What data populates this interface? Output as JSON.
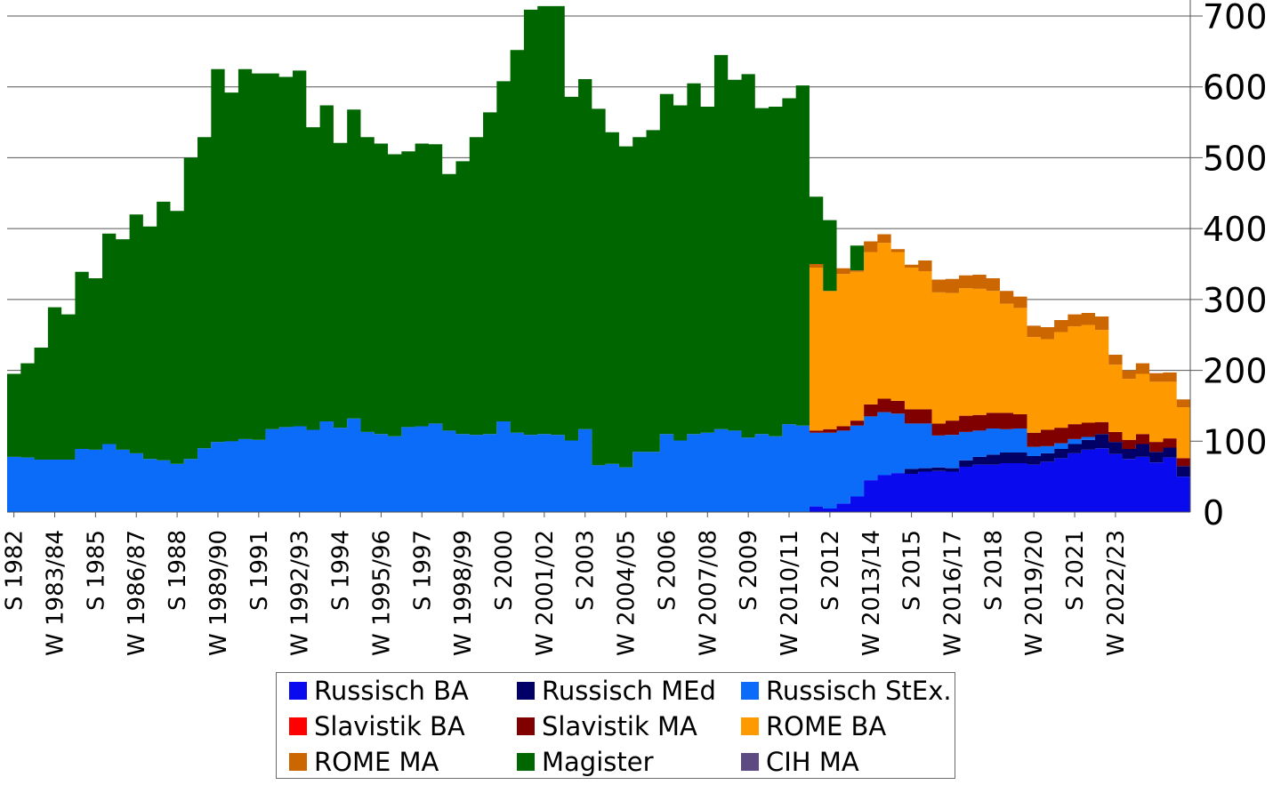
{
  "chart_data": {
    "type": "area",
    "stacked": true,
    "grid": true,
    "y_axis_side": "right",
    "ylim": [
      0,
      700
    ],
    "y_ticks": [
      "0",
      "100",
      "200",
      "300",
      "400",
      "500",
      "600",
      "700"
    ],
    "x_tick_labels": [
      "S 1982",
      "W 1983/84",
      "S 1985",
      "W 1986/87",
      "S 1988",
      "W 1989/90",
      "S 1991",
      "W 1992/93",
      "S 1994",
      "W 1995/96",
      "S 1997",
      "W 1998/99",
      "S 2000",
      "W 2001/02",
      "S 2003",
      "W 2004/05",
      "S 2006",
      "W 2007/08",
      "S 2009",
      "W 2010/11",
      "S 2012",
      "W 2013/14",
      "S 2015",
      "W 2016/17",
      "S 2018",
      "W 2019/20",
      "S 2021",
      "W 2022/23"
    ],
    "legend_position": "bottom",
    "series": [
      {
        "name": "Russisch BA",
        "color": "#0a0aee",
        "values": [
          0,
          0,
          0,
          0,
          0,
          0,
          0,
          0,
          0,
          0,
          0,
          0,
          0,
          0,
          0,
          0,
          0,
          0,
          0,
          0,
          0,
          0,
          0,
          0,
          0,
          0,
          0,
          0,
          0,
          0,
          0,
          0,
          0,
          0,
          0,
          0,
          0,
          0,
          0,
          0,
          0,
          0,
          0,
          0,
          0,
          0,
          0,
          0,
          0,
          0,
          0,
          0,
          0,
          0,
          0,
          0,
          0,
          0,
          0,
          8,
          5,
          12,
          22,
          45,
          52,
          55,
          54,
          57,
          58,
          57,
          64,
          67,
          67,
          69,
          69,
          67,
          71,
          76,
          83,
          88,
          90,
          82,
          75,
          78,
          70,
          77,
          50
        ]
      },
      {
        "name": "Russisch MEd",
        "color": "#000066",
        "values": [
          0,
          0,
          0,
          0,
          0,
          0,
          0,
          0,
          0,
          0,
          0,
          0,
          0,
          0,
          0,
          0,
          0,
          0,
          0,
          0,
          0,
          0,
          0,
          0,
          0,
          0,
          0,
          0,
          0,
          0,
          0,
          0,
          0,
          0,
          0,
          0,
          0,
          0,
          0,
          0,
          0,
          0,
          0,
          0,
          0,
          0,
          0,
          0,
          0,
          0,
          0,
          0,
          0,
          0,
          0,
          0,
          0,
          0,
          0,
          0,
          0,
          0,
          0,
          0,
          0,
          0,
          7,
          5,
          5,
          5,
          9,
          11,
          14,
          15,
          15,
          12,
          12,
          13,
          13,
          14,
          20,
          17,
          14,
          18,
          15,
          14,
          15
        ]
      },
      {
        "name": "Russisch StEx.",
        "color": "#0b6cfa",
        "values": [
          78,
          77,
          74,
          74,
          74,
          89,
          88,
          96,
          88,
          83,
          75,
          73,
          68,
          75,
          90,
          99,
          100,
          103,
          102,
          117,
          120,
          121,
          116,
          128,
          119,
          132,
          113,
          110,
          107,
          120,
          121,
          125,
          115,
          110,
          109,
          110,
          128,
          112,
          109,
          110,
          109,
          101,
          117,
          66,
          68,
          63,
          85,
          85,
          110,
          101,
          110,
          112,
          117,
          115,
          105,
          110,
          107,
          124,
          122,
          104,
          107,
          103,
          100,
          90,
          89,
          84,
          64,
          63,
          45,
          47,
          40,
          37,
          37,
          33,
          34,
          13,
          10,
          8,
          7,
          4,
          0,
          0,
          0,
          0,
          0,
          0,
          0
        ]
      },
      {
        "name": "Slavistik BA",
        "color": "#ff0000",
        "values": [
          0,
          0,
          0,
          0,
          0,
          0,
          0,
          0,
          0,
          0,
          0,
          0,
          0,
          0,
          0,
          0,
          0,
          0,
          0,
          0,
          0,
          0,
          0,
          0,
          0,
          0,
          0,
          0,
          0,
          0,
          0,
          0,
          0,
          0,
          0,
          0,
          0,
          0,
          0,
          0,
          0,
          0,
          0,
          0,
          0,
          0,
          0,
          0,
          0,
          0,
          0,
          0,
          0,
          0,
          0,
          0,
          0,
          0,
          0,
          0,
          0,
          0,
          0,
          0,
          0,
          0,
          0,
          0,
          0,
          0,
          0,
          0,
          0,
          0,
          0,
          0,
          0,
          0,
          0,
          0,
          0,
          0,
          0,
          0,
          0,
          0,
          0
        ]
      },
      {
        "name": "Slavistik MA",
        "color": "#800000",
        "values": [
          0,
          0,
          0,
          0,
          0,
          0,
          0,
          0,
          0,
          0,
          0,
          0,
          0,
          0,
          0,
          0,
          0,
          0,
          0,
          0,
          0,
          0,
          0,
          0,
          0,
          0,
          0,
          0,
          0,
          0,
          0,
          0,
          0,
          0,
          0,
          0,
          0,
          0,
          0,
          0,
          0,
          0,
          0,
          0,
          0,
          0,
          0,
          0,
          0,
          0,
          0,
          0,
          0,
          0,
          0,
          0,
          0,
          0,
          0,
          3,
          5,
          6,
          7,
          17,
          19,
          18,
          20,
          20,
          17,
          20,
          23,
          22,
          22,
          23,
          20,
          20,
          23,
          22,
          21,
          20,
          17,
          14,
          13,
          14,
          14,
          13,
          11
        ]
      },
      {
        "name": "ROME BA",
        "color": "#ff9900",
        "values": [
          0,
          0,
          0,
          0,
          0,
          0,
          0,
          0,
          0,
          0,
          0,
          0,
          0,
          0,
          0,
          0,
          0,
          0,
          0,
          0,
          0,
          0,
          0,
          0,
          0,
          0,
          0,
          0,
          0,
          0,
          0,
          0,
          0,
          0,
          0,
          0,
          0,
          0,
          0,
          0,
          0,
          0,
          0,
          0,
          0,
          0,
          0,
          0,
          0,
          0,
          0,
          0,
          0,
          0,
          0,
          0,
          0,
          0,
          0,
          230,
          195,
          215,
          210,
          215,
          220,
          210,
          200,
          195,
          185,
          180,
          180,
          178,
          172,
          154,
          150,
          135,
          128,
          135,
          138,
          138,
          130,
          95,
          86,
          85,
          85,
          80,
          72
        ]
      },
      {
        "name": "ROME MA",
        "color": "#cc6600",
        "values": [
          0,
          0,
          0,
          0,
          0,
          0,
          0,
          0,
          0,
          0,
          0,
          0,
          0,
          0,
          0,
          0,
          0,
          0,
          0,
          0,
          0,
          0,
          0,
          0,
          0,
          0,
          0,
          0,
          0,
          0,
          0,
          0,
          0,
          0,
          0,
          0,
          0,
          0,
          0,
          0,
          0,
          0,
          0,
          0,
          0,
          0,
          0,
          0,
          0,
          0,
          0,
          0,
          0,
          0,
          0,
          0,
          0,
          0,
          0,
          5,
          0,
          8,
          2,
          15,
          12,
          4,
          4,
          15,
          18,
          20,
          18,
          20,
          18,
          18,
          16,
          16,
          17,
          17,
          17,
          17,
          19,
          14,
          12,
          15,
          12,
          13,
          11
        ]
      },
      {
        "name": "Magister",
        "color": "#006600",
        "values": [
          117,
          133,
          158,
          215,
          205,
          250,
          242,
          297,
          297,
          337,
          328,
          365,
          357,
          425,
          439,
          526,
          492,
          522,
          517,
          502,
          494,
          502,
          427,
          446,
          402,
          436,
          416,
          410,
          398,
          389,
          399,
          394,
          362,
          385,
          420,
          454,
          480,
          540,
          600,
          604,
          605,
          485,
          494,
          503,
          468,
          453,
          444,
          454,
          480,
          473,
          495,
          460,
          528,
          495,
          513,
          460,
          465,
          460,
          480,
          95,
          100,
          0,
          35,
          0,
          0,
          0,
          0,
          0,
          0,
          0,
          0,
          0,
          0,
          0,
          0,
          0,
          0,
          0,
          0,
          0,
          0,
          0,
          0,
          0,
          0,
          0,
          0
        ]
      },
      {
        "name": "CIH MA",
        "color": "#5d4a80",
        "values": [
          0,
          0,
          0,
          0,
          0,
          0,
          0,
          0,
          0,
          0,
          0,
          0,
          0,
          0,
          0,
          0,
          0,
          0,
          0,
          0,
          0,
          0,
          0,
          0,
          0,
          0,
          0,
          0,
          0,
          0,
          0,
          0,
          0,
          0,
          0,
          0,
          0,
          0,
          0,
          0,
          0,
          0,
          0,
          0,
          0,
          0,
          0,
          0,
          0,
          0,
          0,
          0,
          0,
          0,
          0,
          0,
          0,
          0,
          0,
          0,
          0,
          0,
          0,
          0,
          0,
          0,
          0,
          0,
          0,
          0,
          0,
          0,
          0,
          0,
          0,
          0,
          0,
          0,
          0,
          0,
          0,
          0,
          0,
          0,
          0,
          0,
          0
        ]
      }
    ]
  }
}
